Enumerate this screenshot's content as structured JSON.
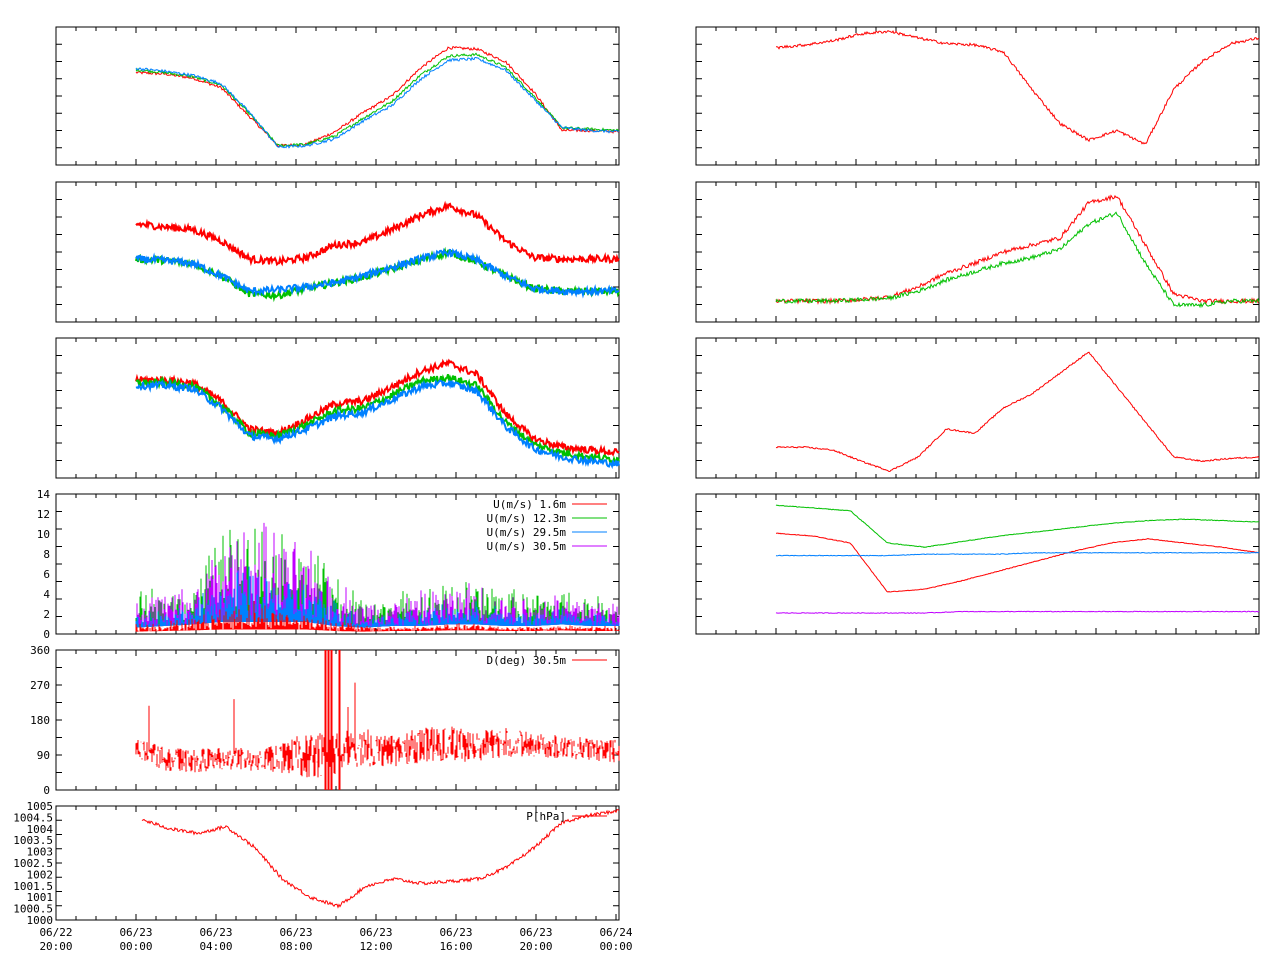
{
  "colors": {
    "red": "#ff0000",
    "green": "#00c000",
    "blue": "#0080ff",
    "purple": "#c000ff",
    "frame": "#000000",
    "background": "#ffffff"
  },
  "time_axis": {
    "tick_labels": [
      [
        "06/22",
        "20:00"
      ],
      [
        "06/23",
        "00:00"
      ],
      [
        "06/23",
        "04:00"
      ],
      [
        "06/23",
        "08:00"
      ],
      [
        "06/23",
        "12:00"
      ],
      [
        "06/23",
        "16:00"
      ],
      [
        "06/23",
        "20:00"
      ],
      [
        "06/24",
        "00:00"
      ]
    ]
  },
  "chart_data": [
    {
      "id": "left-1",
      "type": "line",
      "title": "",
      "series": [
        {
          "color": "red",
          "values": [
            0.67,
            0.66,
            0.63,
            0.56,
            0.35,
            0.14,
            0.15,
            0.24,
            0.38,
            0.5,
            0.7,
            0.85,
            0.84,
            0.75,
            0.53,
            0.25,
            0.25,
            0.24
          ]
        },
        {
          "color": "green",
          "values": [
            0.69,
            0.67,
            0.64,
            0.58,
            0.37,
            0.14,
            0.15,
            0.21,
            0.34,
            0.46,
            0.65,
            0.79,
            0.8,
            0.71,
            0.5,
            0.27,
            0.26,
            0.25
          ]
        },
        {
          "color": "blue",
          "values": [
            0.7,
            0.68,
            0.65,
            0.59,
            0.38,
            0.13,
            0.14,
            0.19,
            0.32,
            0.43,
            0.62,
            0.76,
            0.77,
            0.69,
            0.48,
            0.27,
            0.25,
            0.24
          ]
        }
      ]
    },
    {
      "id": "left-2",
      "type": "line",
      "title": "",
      "series": [
        {
          "color": "red",
          "values": [
            0.7,
            0.68,
            0.66,
            0.58,
            0.45,
            0.43,
            0.46,
            0.55,
            0.57,
            0.66,
            0.76,
            0.83,
            0.76,
            0.58,
            0.46,
            0.45,
            0.45,
            0.45
          ]
        },
        {
          "color": "green",
          "values": [
            0.45,
            0.44,
            0.42,
            0.33,
            0.2,
            0.19,
            0.24,
            0.28,
            0.32,
            0.38,
            0.44,
            0.5,
            0.43,
            0.33,
            0.24,
            0.22,
            0.22,
            0.22
          ]
        },
        {
          "color": "blue",
          "values": [
            0.45,
            0.44,
            0.42,
            0.33,
            0.22,
            0.23,
            0.25,
            0.28,
            0.33,
            0.39,
            0.45,
            0.5,
            0.44,
            0.33,
            0.24,
            0.22,
            0.22,
            0.22
          ]
        }
      ]
    },
    {
      "id": "left-3",
      "type": "line",
      "title": "",
      "series": [
        {
          "color": "red",
          "values": [
            0.7,
            0.7,
            0.68,
            0.55,
            0.35,
            0.32,
            0.42,
            0.53,
            0.55,
            0.65,
            0.76,
            0.82,
            0.74,
            0.46,
            0.28,
            0.22,
            0.2,
            0.18
          ]
        },
        {
          "color": "green",
          "values": [
            0.68,
            0.68,
            0.66,
            0.52,
            0.32,
            0.3,
            0.38,
            0.48,
            0.5,
            0.59,
            0.69,
            0.72,
            0.66,
            0.4,
            0.24,
            0.18,
            0.15,
            0.13
          ]
        },
        {
          "color": "blue",
          "values": [
            0.66,
            0.66,
            0.64,
            0.5,
            0.3,
            0.28,
            0.35,
            0.44,
            0.47,
            0.56,
            0.65,
            0.68,
            0.62,
            0.37,
            0.21,
            0.15,
            0.12,
            0.1
          ]
        }
      ]
    },
    {
      "id": "wind-speed",
      "type": "area",
      "ylim": [
        0,
        14
      ],
      "y_ticks": [
        "0",
        "2",
        "4",
        "6",
        "8",
        "10",
        "12",
        "14"
      ],
      "legend": [
        {
          "label": "U(m/s)  1.6m",
          "color": "red"
        },
        {
          "label": "U(m/s) 12.3m",
          "color": "green"
        },
        {
          "label": "U(m/s) 29.5m",
          "color": "blue"
        },
        {
          "label": "U(m/s) 30.5m",
          "color": "purple"
        }
      ],
      "envelope_max": [
        3.5,
        4.0,
        4.5,
        9.5,
        10.5,
        9.5,
        8.0,
        5.5,
        3.0,
        3.5,
        4.0,
        4.5,
        5.0,
        4.0,
        3.8,
        4.0,
        3.5,
        3.0
      ],
      "envelope_min": [
        0.8,
        1.0,
        1.2,
        1.5,
        1.5,
        1.5,
        1.5,
        1.0,
        0.8,
        1.0,
        1.0,
        1.2,
        1.2,
        1.0,
        1.0,
        1.2,
        1.0,
        1.0
      ],
      "red_max": [
        1.0,
        1.2,
        1.5,
        2.5,
        3.2,
        2.5,
        2.0,
        1.5,
        0.8,
        0.8,
        0.8,
        1.0,
        1.0,
        0.8,
        0.8,
        0.8,
        0.8,
        0.8
      ]
    },
    {
      "id": "wind-direction",
      "type": "line",
      "ylim": [
        0,
        360
      ],
      "y_ticks": [
        "0",
        "90",
        "180",
        "270",
        "360"
      ],
      "legend": [
        {
          "label": "D(deg)  30.5m",
          "color": "red"
        }
      ],
      "center": [
        110,
        80,
        75,
        80,
        78,
        80,
        90,
        95,
        110,
        100,
        115,
        120,
        110,
        125,
        115,
        110,
        105,
        100
      ],
      "spread": [
        25,
        30,
        30,
        30,
        30,
        35,
        60,
        60,
        50,
        40,
        45,
        45,
        40,
        40,
        30,
        30,
        30,
        30
      ]
    },
    {
      "id": "pressure",
      "type": "line",
      "ylim": [
        1000,
        1005
      ],
      "y_ticks": [
        "1000",
        "1000.5",
        "1001",
        "1001.5",
        "1002",
        "1002.5",
        "1003",
        "1003.5",
        "1004",
        "1004.5",
        "1005"
      ],
      "legend": [
        {
          "label": "P[hPa]",
          "color": "red"
        }
      ],
      "values": [
        1004.4,
        1004.0,
        1003.8,
        1004.1,
        1003.2,
        1001.8,
        1001.0,
        1000.6,
        1001.5,
        1001.8,
        1001.6,
        1001.7,
        1001.8,
        1002.3,
        1003.2,
        1004.3,
        1004.6,
        1004.8
      ]
    },
    {
      "id": "right-1",
      "type": "line",
      "title": "",
      "series": [
        {
          "color": "red",
          "values": [
            0.85,
            0.87,
            0.9,
            0.95,
            0.97,
            0.92,
            0.88,
            0.87,
            0.82,
            0.55,
            0.3,
            0.18,
            0.25,
            0.15,
            0.55,
            0.75,
            0.88,
            0.92
          ]
        }
      ]
    },
    {
      "id": "right-2",
      "type": "line",
      "title": "",
      "series": [
        {
          "color": "red",
          "values": [
            0.15,
            0.15,
            0.15,
            0.16,
            0.18,
            0.25,
            0.35,
            0.42,
            0.5,
            0.55,
            0.6,
            0.85,
            0.9,
            0.55,
            0.2,
            0.15,
            0.15,
            0.15
          ]
        },
        {
          "color": "green",
          "values": [
            0.15,
            0.15,
            0.15,
            0.16,
            0.17,
            0.22,
            0.3,
            0.36,
            0.42,
            0.46,
            0.52,
            0.7,
            0.78,
            0.42,
            0.12,
            0.12,
            0.15,
            0.15
          ]
        }
      ]
    },
    {
      "id": "right-3",
      "type": "line",
      "title": "",
      "series": [
        {
          "color": "red",
          "values": [
            0.22,
            0.22,
            0.2,
            0.12,
            0.05,
            0.15,
            0.35,
            0.32,
            0.5,
            0.6,
            0.75,
            0.9,
            0.65,
            0.4,
            0.15,
            0.12,
            0.14,
            0.15
          ]
        }
      ]
    },
    {
      "id": "right-4",
      "type": "line",
      "title": "",
      "series": [
        {
          "color": "green",
          "values": [
            0.92,
            0.9,
            0.88,
            0.65,
            0.62,
            0.66,
            0.7,
            0.73,
            0.76,
            0.79,
            0.81,
            0.82,
            0.81,
            0.8
          ]
        },
        {
          "color": "red",
          "values": [
            0.72,
            0.7,
            0.65,
            0.3,
            0.32,
            0.38,
            0.45,
            0.52,
            0.59,
            0.65,
            0.68,
            0.65,
            0.62,
            0.58
          ]
        },
        {
          "color": "blue",
          "values": [
            0.56,
            0.56,
            0.56,
            0.56,
            0.57,
            0.57,
            0.57,
            0.58,
            0.58,
            0.58,
            0.58,
            0.58,
            0.58,
            0.58
          ]
        },
        {
          "color": "purple",
          "values": [
            0.15,
            0.15,
            0.15,
            0.15,
            0.15,
            0.16,
            0.16,
            0.16,
            0.16,
            0.16,
            0.16,
            0.16,
            0.16,
            0.16
          ]
        }
      ]
    }
  ]
}
